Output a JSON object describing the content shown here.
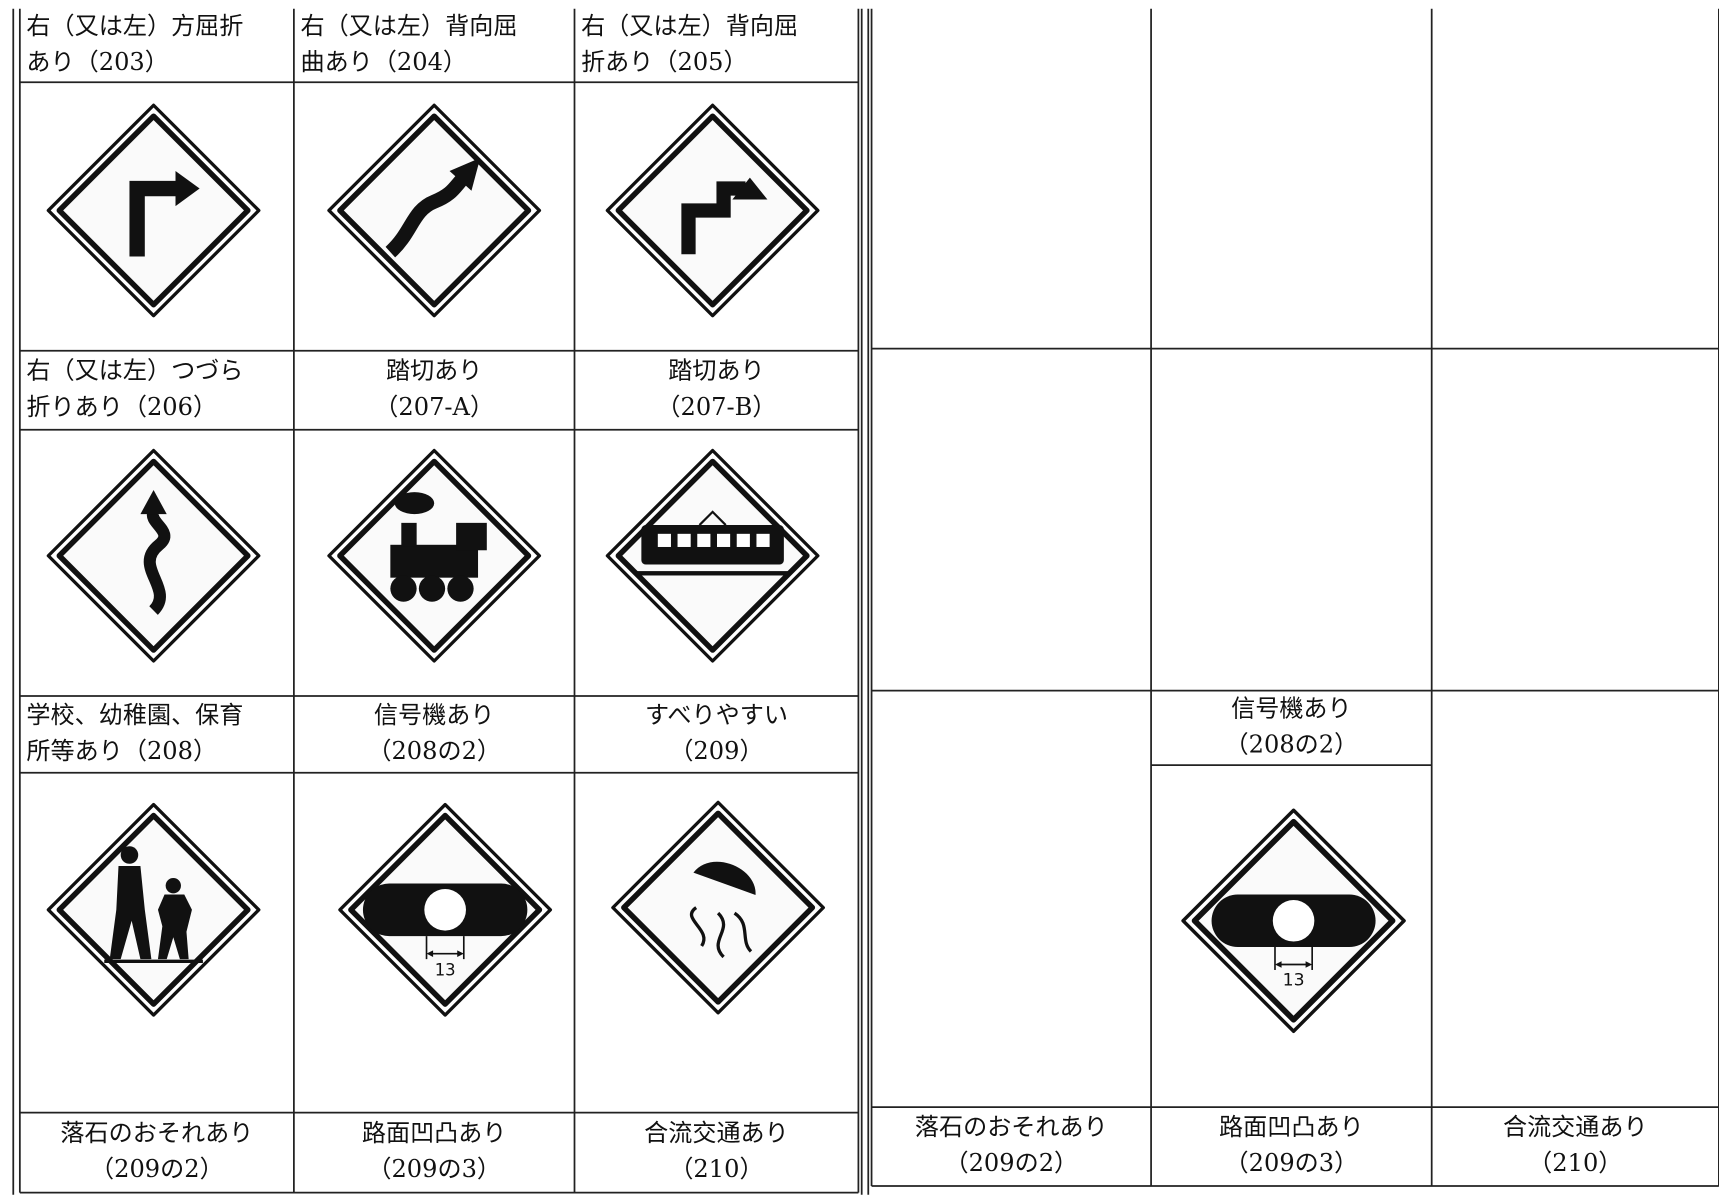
{
  "left_table": {
    "label_rows": [
      [
        [
          "右（又は左）方屈折",
          "あり（203）"
        ],
        [
          "右（又は左）背向屈",
          "曲あり（204）"
        ],
        [
          "右（又は左）背向屈",
          "折あり（205）"
        ]
      ],
      [
        [
          "右（又は左）つづら",
          "折りあり（206）"
        ],
        [
          "踏切あり",
          "（207-A）"
        ],
        [
          "踏切あり",
          "（207-B）"
        ]
      ],
      [
        [
          "学校、幼稚園、保育",
          "所等あり（208）"
        ],
        [
          "信号機あり",
          "（208の2）"
        ],
        [
          "すべりやすい",
          "（209）"
        ]
      ],
      [
        [
          "落石のおそれあり",
          "（209の2）"
        ],
        [
          "路面凹凸あり",
          "（209の3）"
        ],
        [
          "合流交通あり",
          "（210）"
        ]
      ]
    ]
  },
  "right_table": {
    "middle_label": [
      "信号機あり",
      "（208の2）"
    ],
    "bottom_labels": [
      [
        "落石のおそれあり",
        "（209の2）"
      ],
      [
        "路面凹凸あり",
        "（209の3）"
      ],
      [
        "合流交通あり",
        "（210）"
      ]
    ]
  },
  "sign_dimension": "13"
}
